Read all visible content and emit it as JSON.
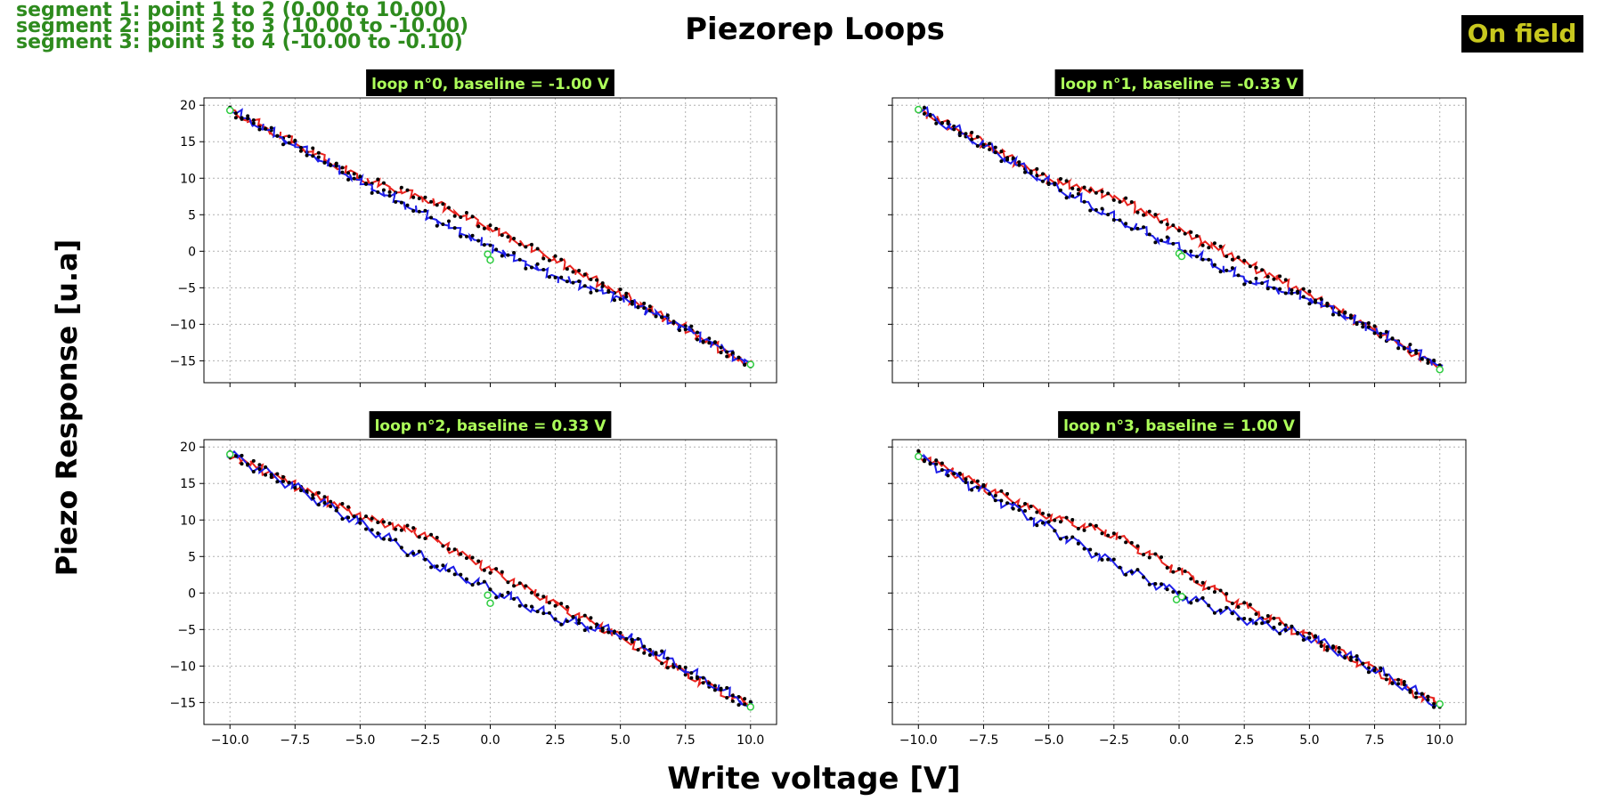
{
  "figure": {
    "title": "Piezorep Loops",
    "xlabel": "Write voltage [V]",
    "ylabel": "Piezo Response [u.a]",
    "badge": "On field",
    "colors": {
      "segment_text": "#2e8b1e",
      "badge_bg": "#000000",
      "badge_text": "#c8c81e",
      "panel_title_bg": "#000000",
      "panel_title_text": "#adff5a",
      "forward_branch": "#e8231e",
      "reverse_branch": "#1e1ee8",
      "point_edge": "#000000",
      "endpoint_marker": "#2ecc40"
    }
  },
  "segments": [
    "segment 1: point 1 to 2 (0.00 to 10.00)",
    "segment 2: point 2 to 3 (10.00 to -10.00)",
    "segment 3: point 3 to 4 (-10.00 to -0.10)"
  ],
  "chart_data": [
    {
      "type": "line",
      "title": "loop n°0, baseline = -1.00 V",
      "xlim": [
        -11,
        11
      ],
      "ylim": [
        -18,
        21
      ],
      "xticks": [
        -10.0,
        -7.5,
        -5.0,
        -2.5,
        0.0,
        2.5,
        5.0,
        7.5,
        10.0
      ],
      "yticks": [
        -15,
        -10,
        -5,
        0,
        5,
        10,
        15,
        20
      ],
      "grid": true,
      "series": [
        {
          "x": [
            10,
            7.5,
            5,
            2.5,
            0,
            -2.5,
            -5,
            -7.5,
            -10
          ],
          "y": [
            -15.8,
            -10.6,
            -5.8,
            -1.2,
            3.2,
            7.2,
            10.0,
            14.8,
            19.3
          ]
        },
        {
          "x": [
            -10,
            -7.5,
            -5,
            -2.5,
            0,
            2.5,
            5,
            7.5,
            10
          ],
          "y": [
            19.3,
            14.5,
            9.5,
            5.0,
            0.6,
            -3.5,
            -6.3,
            -10.5,
            -15.5
          ]
        }
      ],
      "endpoints": [
        {
          "x": -10,
          "y": 19.3
        },
        {
          "x": -0.1,
          "y": -0.4
        },
        {
          "x": 0,
          "y": -1.2
        },
        {
          "x": 10,
          "y": -15.5
        }
      ]
    },
    {
      "type": "line",
      "title": "loop n°1, baseline = -0.33 V",
      "xlim": [
        -11,
        11
      ],
      "ylim": [
        -18,
        21
      ],
      "xticks": [
        -10.0,
        -7.5,
        -5.0,
        -2.5,
        0.0,
        2.5,
        5.0,
        7.5,
        10.0
      ],
      "yticks": [
        -15,
        -10,
        -5,
        0,
        5,
        10,
        15,
        20
      ],
      "grid": true,
      "series": [
        {
          "x": [
            10,
            7.5,
            5,
            2.5,
            0,
            -2.5,
            -5,
            -7.5,
            -10
          ],
          "y": [
            -16.0,
            -10.8,
            -6.0,
            -1.5,
            3.0,
            7.5,
            9.8,
            14.8,
            19.4
          ]
        },
        {
          "x": [
            -10,
            -7.5,
            -5,
            -2.5,
            0,
            2.5,
            5,
            7.5,
            10
          ],
          "y": [
            19.4,
            14.5,
            9.3,
            4.5,
            0.5,
            -3.8,
            -6.5,
            -10.8,
            -15.6
          ]
        }
      ],
      "endpoints": [
        {
          "x": -10,
          "y": 19.4
        },
        {
          "x": 0,
          "y": -0.3
        },
        {
          "x": 0.1,
          "y": -0.7
        },
        {
          "x": 10,
          "y": -16.2
        }
      ]
    },
    {
      "type": "line",
      "title": "loop n°2, baseline = 0.33 V",
      "xlim": [
        -11,
        11
      ],
      "ylim": [
        -18,
        21
      ],
      "xticks": [
        -10.0,
        -7.5,
        -5.0,
        -2.5,
        0.0,
        2.5,
        5.0,
        7.5,
        10.0
      ],
      "yticks": [
        -15,
        -10,
        -5,
        0,
        5,
        10,
        15,
        20
      ],
      "grid": true,
      "series": [
        {
          "x": [
            10,
            7.5,
            5,
            2.5,
            0,
            -2.5,
            -5,
            -7.5,
            -10
          ],
          "y": [
            -15.5,
            -11.0,
            -6.0,
            -1.5,
            3.2,
            8.0,
            10.5,
            14.8,
            19.0
          ]
        },
        {
          "x": [
            -10,
            -7.5,
            -5,
            -2.5,
            0,
            2.5,
            5,
            7.5,
            10
          ],
          "y": [
            19.0,
            14.5,
            9.5,
            4.5,
            0.5,
            -3.5,
            -5.5,
            -10.5,
            -15.5
          ]
        }
      ],
      "endpoints": [
        {
          "x": -10,
          "y": 19.0
        },
        {
          "x": -0.1,
          "y": -0.3
        },
        {
          "x": 0,
          "y": -1.4
        },
        {
          "x": 10,
          "y": -15.6
        }
      ]
    },
    {
      "type": "line",
      "title": "loop n°3, baseline = 1.00 V",
      "xlim": [
        -11,
        11
      ],
      "ylim": [
        -18,
        21
      ],
      "xticks": [
        -10.0,
        -7.5,
        -5.0,
        -2.5,
        0.0,
        2.5,
        5.0,
        7.5,
        10.0
      ],
      "yticks": [
        -15,
        -10,
        -5,
        0,
        5,
        10,
        15,
        20
      ],
      "grid": true,
      "series": [
        {
          "x": [
            10,
            7.5,
            5,
            2.5,
            0,
            -2.5,
            -5,
            -7.5,
            -10
          ],
          "y": [
            -15.5,
            -10.5,
            -6.0,
            -1.8,
            3.0,
            8.0,
            10.5,
            14.5,
            19.0
          ]
        },
        {
          "x": [
            -10,
            -7.5,
            -5,
            -2.5,
            0,
            2.5,
            5,
            7.5,
            10
          ],
          "y": [
            18.7,
            14.0,
            9.0,
            4.0,
            -0.2,
            -3.5,
            -6.0,
            -10.5,
            -15.5
          ]
        }
      ],
      "endpoints": [
        {
          "x": -10,
          "y": 18.7
        },
        {
          "x": -0.1,
          "y": -0.9
        },
        {
          "x": 0.1,
          "y": -0.5
        },
        {
          "x": 10,
          "y": -15.2
        }
      ]
    }
  ]
}
